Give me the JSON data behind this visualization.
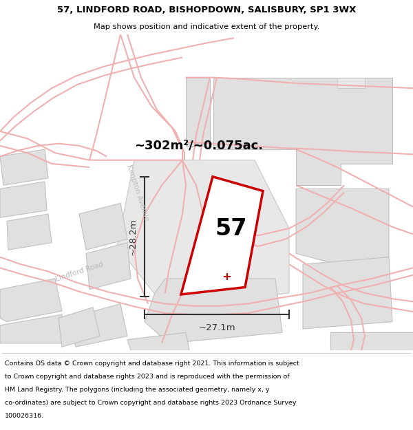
{
  "title": "57, LINDFORD ROAD, BISHOPDOWN, SALISBURY, SP1 3WX",
  "subtitle": "Map shows position and indicative extent of the property.",
  "area_label": "~302m²/~0.075ac.",
  "plot_number": "57",
  "dim_width": "~27.1m",
  "dim_height": "~28.2m",
  "footer_lines": [
    "Contains OS data © Crown copyright and database right 2021. This information is subject",
    "to Crown copyright and database rights 2023 and is reproduced with the permission of",
    "HM Land Registry. The polygons (including the associated geometry, namely x, y",
    "co-ordinates) are subject to Crown copyright and database rights 2023 Ordnance Survey",
    "100026316."
  ],
  "bg_color": "#f7f7f7",
  "plot_fill": "#ffffff",
  "plot_outline": "#cc0000",
  "building_fill": "#e0e0e0",
  "building_outline": "#c0c0c0",
  "road_line_color": "#f0b0b0",
  "road_fill_color": "#f8e8e8",
  "dim_color": "#333333",
  "road_label_color": "#bbbbbb",
  "kimpton_label": "Kimpton Avenue",
  "lindford_label": "Lindford Road"
}
